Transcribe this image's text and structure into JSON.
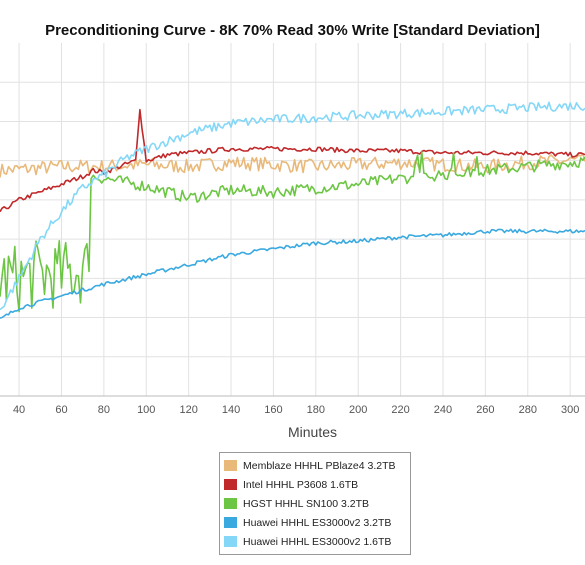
{
  "chart_data": {
    "type": "line",
    "title": "Preconditioning Curve - 8K 70% Read 30% Write [Standard Deviation]",
    "xlabel": "Minutes",
    "ylabel": "",
    "xlim": [
      31,
      307
    ],
    "ylim": [
      0,
      9
    ],
    "x_ticks": [
      40,
      60,
      80,
      100,
      120,
      140,
      160,
      180,
      200,
      220,
      240,
      260,
      280,
      300
    ],
    "grid": true,
    "legend_position": "bottom-center",
    "series": [
      {
        "name": "Memblaze HHHL PBlaze4 3.2TB",
        "color": "#e9b97a",
        "x": [
          31,
          60,
          80,
          100,
          120,
          140,
          160,
          180,
          200,
          220,
          240,
          260,
          280,
          300,
          307
        ],
        "y": [
          5.75,
          5.85,
          5.85,
          5.9,
          5.85,
          5.95,
          5.9,
          5.85,
          5.9,
          5.95,
          5.9,
          5.85,
          5.95,
          6.0,
          6.0
        ]
      },
      {
        "name": "Intel HHHL P3608 1.6TB",
        "color": "#c0282a",
        "x": [
          31,
          40,
          50,
          60,
          70,
          75,
          80,
          90,
          95,
          97,
          100,
          110,
          120,
          140,
          160,
          180,
          200,
          220,
          240,
          260,
          280,
          300,
          307
        ],
        "y": [
          4.7,
          5.0,
          5.2,
          5.4,
          5.6,
          5.75,
          5.7,
          5.9,
          6.0,
          7.3,
          6.0,
          6.15,
          6.2,
          6.3,
          6.3,
          6.3,
          6.25,
          6.25,
          6.2,
          6.2,
          6.2,
          6.15,
          6.15
        ]
      },
      {
        "name": "HGST HHHL SN100 3.2TB",
        "color": "#6cc644",
        "x": [
          31,
          40,
          50,
          60,
          70,
          73,
          74,
          80,
          100,
          120,
          140,
          160,
          180,
          200,
          220,
          240,
          260,
          280,
          300,
          307
        ],
        "y": [
          3.0,
          3.0,
          3.1,
          3.1,
          3.2,
          3.3,
          5.6,
          5.55,
          5.35,
          5.05,
          5.25,
          5.2,
          5.3,
          5.4,
          5.55,
          5.65,
          5.75,
          5.85,
          5.95,
          6.0
        ]
      },
      {
        "name": "Huawei HHHL ES3000v2 3.2TB",
        "color": "#3aa9e0",
        "x": [
          31,
          40,
          60,
          80,
          100,
          120,
          140,
          160,
          180,
          200,
          220,
          240,
          260,
          280,
          300,
          307
        ],
        "y": [
          1.95,
          2.25,
          2.55,
          2.85,
          3.1,
          3.35,
          3.6,
          3.75,
          3.9,
          3.95,
          4.05,
          4.1,
          4.2,
          4.2,
          4.2,
          4.2
        ]
      },
      {
        "name": "Huawei HHHL ES3000v2 1.6TB",
        "color": "#84d7f7",
        "x": [
          31,
          40,
          50,
          60,
          70,
          80,
          90,
          100,
          110,
          120,
          140,
          160,
          180,
          200,
          220,
          240,
          260,
          280,
          300,
          307
        ],
        "y": [
          2.2,
          3.0,
          4.0,
          4.7,
          5.3,
          5.65,
          6.05,
          6.3,
          6.5,
          6.7,
          6.95,
          7.05,
          7.1,
          7.15,
          7.2,
          7.25,
          7.3,
          7.35,
          7.4,
          7.4
        ]
      }
    ]
  }
}
